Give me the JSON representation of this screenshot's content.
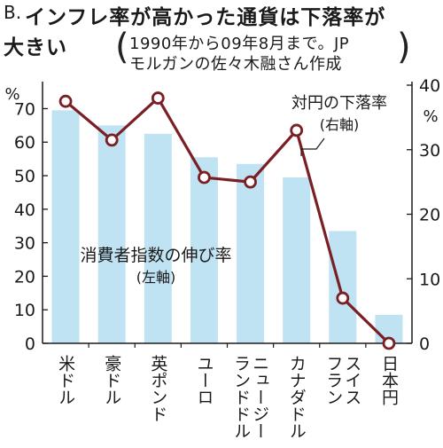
{
  "header": {
    "prefix": "B.",
    "title_line1": "インフレ率が高かった通貨は下落率が",
    "title_line2": "大きい",
    "source_line1": "1990年から09年8月まで。JP",
    "source_line2": "モルガンの佐々木融さん作成"
  },
  "chart_data": {
    "type": "bar",
    "categories": [
      "米ドル",
      "豪ドル",
      "英ポンド",
      "ユーロ",
      "ニュージーランドドル",
      "カナダドル",
      "スイスフラン",
      "日本円"
    ],
    "category_lines": [
      [
        "米ドル"
      ],
      [
        "豪ドル"
      ],
      [
        "英ポンド"
      ],
      [
        "ユーロ"
      ],
      [
        "ニュージー",
        "ランドドル"
      ],
      [
        "カナダドル"
      ],
      [
        "スイス",
        "フラン"
      ],
      [
        "日本円"
      ]
    ],
    "series": [
      {
        "name": "消費者指数の伸び率",
        "name_note": "(左軸)",
        "type": "bar",
        "axis": "left",
        "values": [
          69.5,
          65,
          62.5,
          55.5,
          53.5,
          49.5,
          33.5,
          8.5
        ],
        "color": "#bfe3f3"
      },
      {
        "name": "対円の下落率",
        "name_note": "(右軸)",
        "type": "line",
        "axis": "right",
        "values": [
          37.5,
          31.5,
          38,
          25.7,
          25,
          33,
          7,
          0
        ],
        "color": "#7a1f24"
      }
    ],
    "y_left": {
      "label": "%",
      "ticks": [
        0,
        10,
        20,
        30,
        40,
        50,
        60,
        70
      ],
      "ylim": [
        0,
        77
      ]
    },
    "y_right": {
      "label": "%",
      "ticks": [
        0,
        10,
        20,
        30,
        40
      ],
      "ylim": [
        0,
        40
      ]
    }
  }
}
